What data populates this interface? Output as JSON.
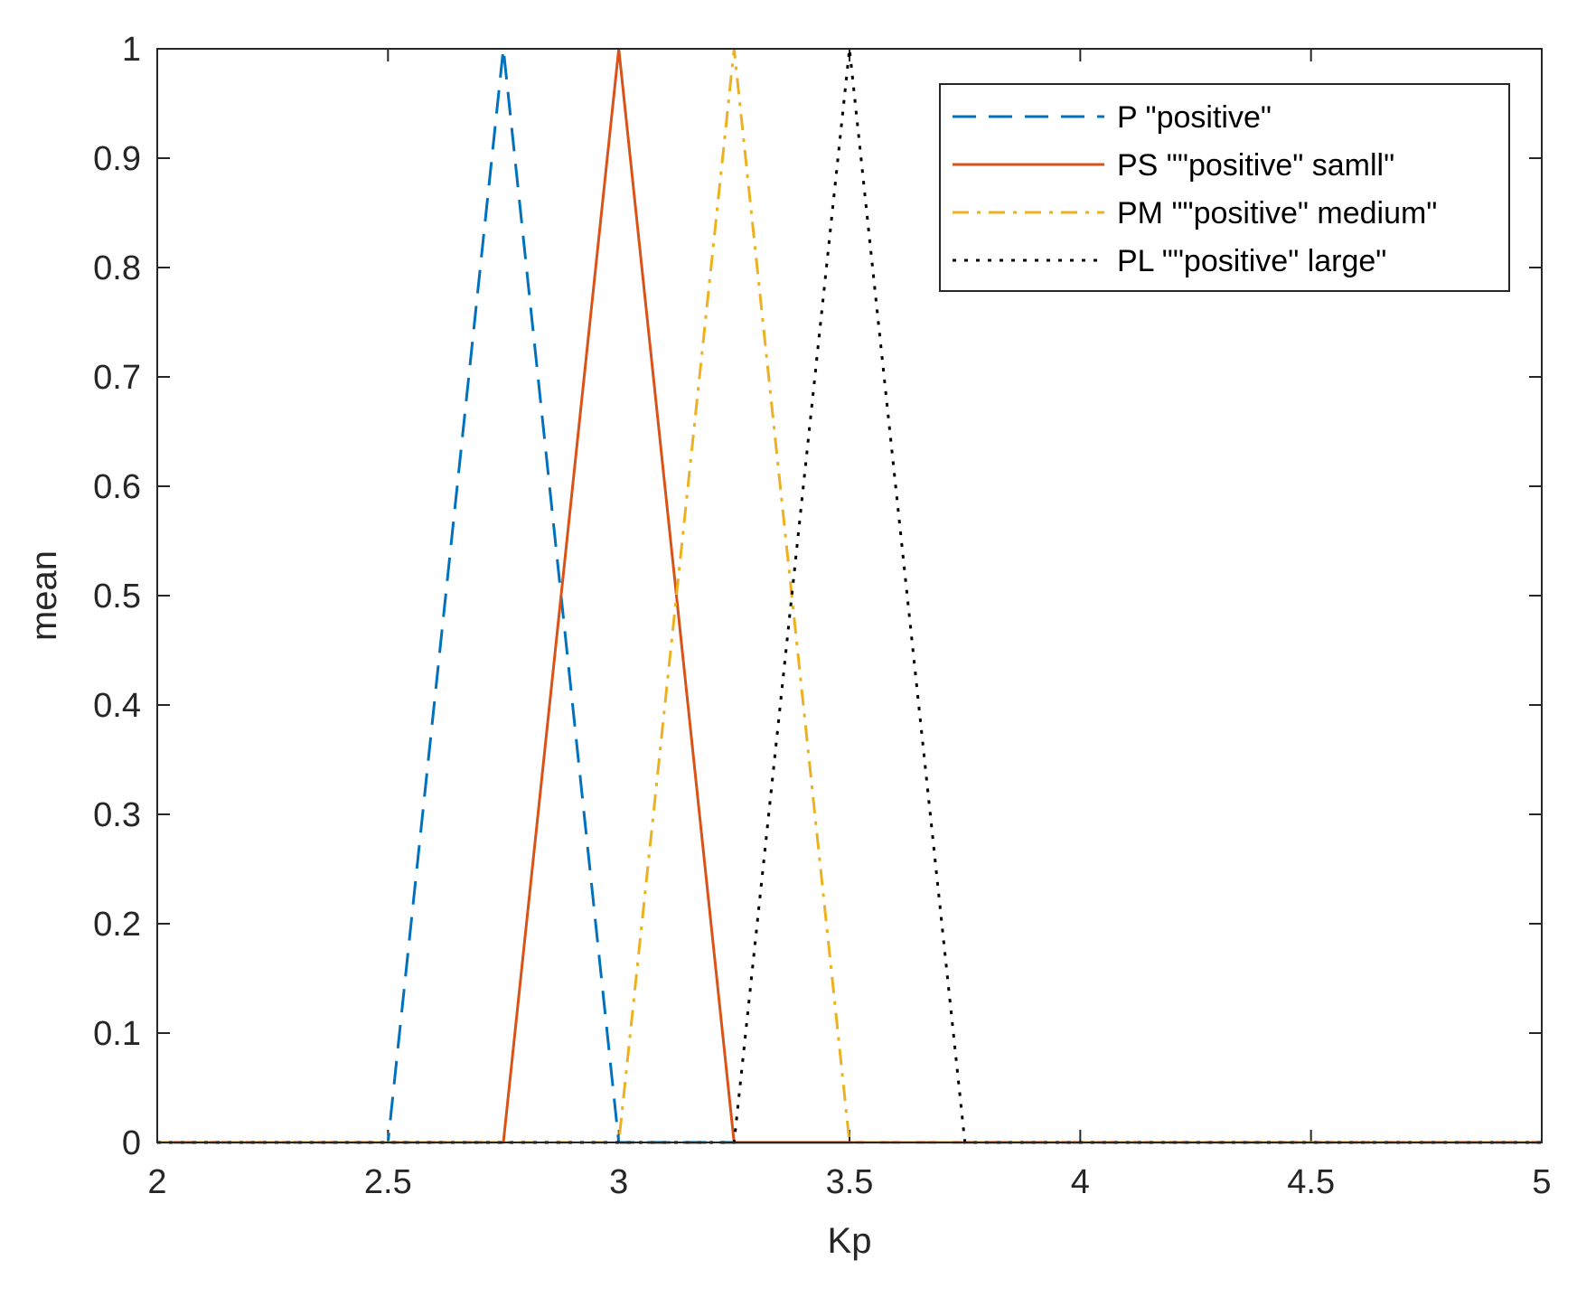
{
  "chart_data": {
    "type": "line",
    "title": "",
    "xlabel": "Kp",
    "ylabel": "mean",
    "xlim": [
      2,
      5
    ],
    "ylim": [
      0,
      1
    ],
    "x_ticks": [
      "2",
      "2.5",
      "3",
      "3.5",
      "4",
      "4.5",
      "5"
    ],
    "y_ticks": [
      "0",
      "0.1",
      "0.2",
      "0.3",
      "0.4",
      "0.5",
      "0.6",
      "0.7",
      "0.8",
      "0.9",
      "1"
    ],
    "grid": false,
    "legend_position": "top-right",
    "series": [
      {
        "name": "P \"positive\"",
        "color": "#0072BD",
        "line_style": "dashed",
        "points": [
          [
            2,
            0
          ],
          [
            2.5,
            0
          ],
          [
            2.75,
            1
          ],
          [
            3,
            0
          ],
          [
            5,
            0
          ]
        ]
      },
      {
        "name": "PS \"\"positive\" samll\"",
        "color": "#D95319",
        "line_style": "solid",
        "points": [
          [
            2,
            0
          ],
          [
            2.75,
            0
          ],
          [
            3,
            1
          ],
          [
            3.25,
            0
          ],
          [
            5,
            0
          ]
        ]
      },
      {
        "name": "PM \"\"positive\" medium\"",
        "color": "#EDB120",
        "line_style": "dashdot",
        "points": [
          [
            2,
            0
          ],
          [
            3,
            0
          ],
          [
            3.25,
            1
          ],
          [
            3.5,
            0
          ],
          [
            5,
            0
          ]
        ]
      },
      {
        "name": "PL \"\"positive\" large\"",
        "color": "#000000",
        "line_style": "dotted",
        "points": [
          [
            2,
            0
          ],
          [
            3.25,
            0
          ],
          [
            3.5,
            1
          ],
          [
            3.75,
            0
          ],
          [
            5,
            0
          ]
        ]
      }
    ]
  }
}
